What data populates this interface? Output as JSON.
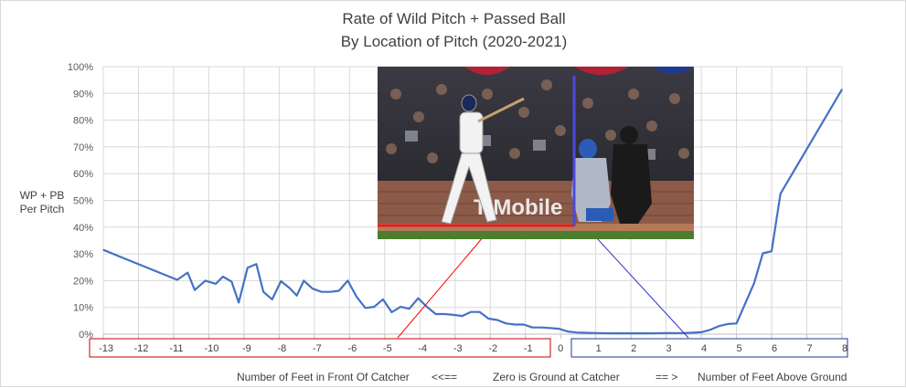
{
  "chart_data": {
    "type": "line",
    "title": "Rate of Wild Pitch + Passed Ball",
    "subtitle": "By Location of Pitch (2020-2021)",
    "ylabel": "WP + PB Per Pitch",
    "ylim": [
      0,
      100
    ],
    "xlim": [
      -13,
      8
    ],
    "grid": true,
    "y_tick_labels": [
      "0%",
      "10%",
      "20%",
      "30%",
      "40%",
      "50%",
      "60%",
      "70%",
      "80%",
      "90%",
      "100%"
    ],
    "x_tick_labels": [
      "-13",
      "-12",
      "-11",
      "-10",
      "-9",
      "-8",
      "-7",
      "-6",
      "-5",
      "-4",
      "-3",
      "-2",
      "-1",
      "0",
      "1",
      "2",
      "3",
      "4",
      "5",
      "6",
      "7",
      "8"
    ],
    "series": [
      {
        "color": "#4472c4",
        "x": [
          -13,
          -10.9,
          -10.6,
          -10.4,
          -10.1,
          -9.8,
          -9.6,
          -9.35,
          -9.15,
          -8.9,
          -8.65,
          -8.45,
          -8.2,
          -7.95,
          -7.7,
          -7.5,
          -7.3,
          -7.05,
          -6.8,
          -6.55,
          -6.3,
          -6.05,
          -5.8,
          -5.55,
          -5.3,
          -5.05,
          -4.8,
          -4.55,
          -4.3,
          -4.05,
          -3.8,
          -3.55,
          -3.3,
          -3.05,
          -2.8,
          -2.55,
          -2.3,
          -2.05,
          -1.8,
          -1.55,
          -1.3,
          -1.05,
          -0.8,
          -0.55,
          -0.3,
          -0.05,
          0.2,
          0.45,
          0.7,
          1,
          1.5,
          2,
          2.5,
          3,
          3.5,
          4,
          4.25,
          4.5,
          4.75,
          5,
          5.25,
          5.5,
          5.75,
          6,
          6.25,
          8
        ],
        "y": [
          31.5,
          20.3,
          23,
          16.5,
          20,
          18.8,
          21.5,
          19.6,
          11.8,
          24.8,
          26.2,
          15.8,
          13,
          19.8,
          17.2,
          14.4,
          20,
          17,
          15.8,
          15.8,
          16.2,
          20,
          14,
          9.8,
          10.2,
          13,
          8.2,
          10.2,
          9.5,
          13.4,
          10.2,
          7.5,
          7.5,
          7.2,
          6.8,
          8.3,
          8.3,
          5.8,
          5.3,
          4,
          3.6,
          3.6,
          2.5,
          2.5,
          2.3,
          2,
          1,
          0.6,
          0.5,
          0.4,
          0.3,
          0.3,
          0.3,
          0.4,
          0.4,
          0.7,
          1.6,
          3,
          3.8,
          4,
          11.5,
          19,
          30.2,
          31,
          52.5,
          91.5
        ]
      }
    ],
    "annotations": {
      "left_axis_note": "Number of Feet in Front Of Catcher",
      "left_arrow": "<<==",
      "center_note": "Zero is Ground at Catcher",
      "right_arrow": "== >",
      "right_axis_note": "Number of Feet Above Ground"
    },
    "photo_banner_text": "T Mobile"
  }
}
